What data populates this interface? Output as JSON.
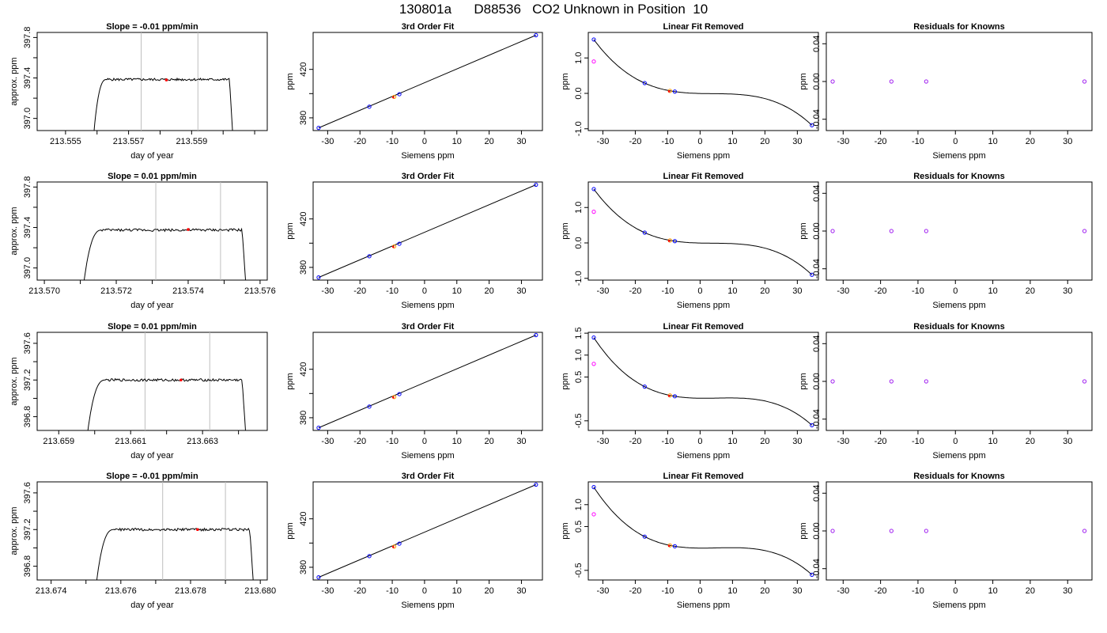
{
  "page": {
    "title": "130801a      D88536   CO2 Unknown in Position  10"
  },
  "colors": {
    "trace": "#000000",
    "marker_red": "#ff0000",
    "marker_orange": "#ff9900",
    "marker_blue": "#0000ff",
    "marker_purple": "#a020f0",
    "marker_magenta": "#ff00ff",
    "window_lines": "#bebebe"
  },
  "chart_data": [
    {
      "id": "r1-slope",
      "type": "line",
      "title": "Slope =  -0.01  ppm/min",
      "xlabel": "day of year",
      "ylabel": "approx. ppm",
      "xlim": [
        213.5541,
        213.5614
      ],
      "ylim": [
        396.88,
        397.85
      ],
      "xticks": [
        213.555,
        213.556,
        213.557,
        213.558,
        213.559,
        213.56,
        213.561
      ],
      "xtick_labels": [
        "213.555",
        "",
        "213.557",
        "",
        "213.559",
        "",
        ""
      ],
      "yticks": [
        397.0,
        397.2,
        397.4,
        397.6,
        397.8
      ],
      "ytick_labels": [
        "397.0",
        "",
        "397.4",
        "",
        "397.8"
      ],
      "vlines": [
        213.5574,
        213.5592
      ],
      "trace": {
        "x_start": 213.5559,
        "x_rise": 213.5563,
        "x_fall": 213.5602,
        "x_end": 213.5603,
        "y_start": 396.86,
        "y_mid": 397.23,
        "y_plateau": 397.385,
        "y_drop": 396.86,
        "noise": 0.012
      },
      "point": {
        "x": 213.5582,
        "y": 397.38
      }
    },
    {
      "id": "r1-fit",
      "type": "scatter",
      "title": "3rd Order Fit",
      "xlabel": "Siemens ppm",
      "ylabel": "ppm",
      "xlim": [
        -34.5,
        36.5
      ],
      "ylim": [
        369.5,
        450.5
      ],
      "xticks": [
        -30,
        -20,
        -10,
        0,
        10,
        20,
        30
      ],
      "yticks": [
        380,
        400,
        420
      ],
      "ytick_labels": [
        "380",
        "",
        "420"
      ],
      "fit_line": {
        "from": [
          -32.8,
          371.7
        ],
        "to": [
          34.5,
          448.2
        ]
      },
      "knowns": [
        [
          -32.8,
          371.7
        ],
        [
          -17.1,
          389.2
        ],
        [
          -7.8,
          399.5
        ],
        [
          34.5,
          448.2
        ]
      ],
      "unknown": [
        -9.4,
        397.3
      ]
    },
    {
      "id": "r1-lin",
      "type": "line",
      "title": "Linear Fit Removed",
      "xlabel": "Siemens ppm",
      "ylabel": "ppm",
      "xlim": [
        -34.5,
        36.5
      ],
      "ylim": [
        -1.05,
        1.72
      ],
      "xticks": [
        -30,
        -20,
        -10,
        0,
        10,
        20,
        30
      ],
      "yticks": [
        -1.0,
        0.0,
        1.0
      ],
      "ytick_labels": [
        "-1.0",
        "0.0",
        "1.0"
      ],
      "curve": {
        "a": 0.047,
        "b": 0.0135,
        "c": -5.5e-05
      },
      "knowns": [
        [
          -32.8,
          1.52
        ],
        [
          -17.1,
          0.29
        ],
        [
          -7.8,
          0.05
        ],
        [
          34.5,
          -0.9
        ]
      ],
      "hollow_magenta": [
        [
          -32.8,
          0.9
        ]
      ],
      "unknown": [
        -9.3,
        0.07
      ]
    },
    {
      "id": "r1-res",
      "type": "scatter",
      "title": "Residuals for Knowns",
      "xlabel": "Siemens ppm",
      "ylabel": "ppm",
      "xlim": [
        -34.5,
        36.5
      ],
      "ylim": [
        -0.052,
        0.052
      ],
      "xticks": [
        -30,
        -20,
        -10,
        0,
        10,
        20,
        30
      ],
      "yticks": [
        -0.04,
        0.0,
        0.04
      ],
      "ytick_labels": [
        "-0.04",
        "0.00",
        "0.04"
      ],
      "points": [
        [
          -32.8,
          0.0
        ],
        [
          -17.1,
          0.0
        ],
        [
          -7.8,
          0.0
        ],
        [
          34.5,
          0.0
        ]
      ]
    },
    {
      "id": "r2-slope",
      "type": "line",
      "title": "Slope =  0.01  ppm/min",
      "xlabel": "day of year",
      "ylabel": "approx. ppm",
      "xlim": [
        213.5698,
        213.5762
      ],
      "ylim": [
        396.88,
        397.85
      ],
      "xticks": [
        213.57,
        213.571,
        213.572,
        213.573,
        213.574,
        213.575,
        213.576
      ],
      "xtick_labels": [
        "213.570",
        "",
        "213.572",
        "",
        "213.574",
        "",
        "213.576"
      ],
      "yticks": [
        397.0,
        397.2,
        397.4,
        397.6,
        397.8
      ],
      "ytick_labels": [
        "397.0",
        "",
        "397.4",
        "",
        "397.8"
      ],
      "vlines": [
        213.5731,
        213.5749
      ],
      "trace": {
        "x_start": 213.5711,
        "x_rise": 213.5716,
        "x_fall": 213.5755,
        "x_end": 213.5756,
        "y_start": 396.86,
        "y_mid": 397.2,
        "y_plateau": 397.375,
        "y_drop": 396.86,
        "noise": 0.013
      },
      "point": {
        "x": 213.574,
        "y": 397.38
      }
    },
    {
      "id": "r2-fit",
      "type": "scatter",
      "title": "3rd Order Fit",
      "xlabel": "Siemens ppm",
      "ylabel": "ppm",
      "xlim": [
        -34.5,
        36.5
      ],
      "ylim": [
        369.5,
        450.5
      ],
      "xticks": [
        -30,
        -20,
        -10,
        0,
        10,
        20,
        30
      ],
      "yticks": [
        380,
        400,
        420
      ],
      "ytick_labels": [
        "380",
        "",
        "420"
      ],
      "fit_line": {
        "from": [
          -32.8,
          371.7
        ],
        "to": [
          34.5,
          448.2
        ]
      },
      "knowns": [
        [
          -32.8,
          371.7
        ],
        [
          -17.1,
          389.2
        ],
        [
          -7.8,
          399.5
        ],
        [
          34.5,
          448.2
        ]
      ],
      "unknown": [
        -9.4,
        397.3
      ]
    },
    {
      "id": "r2-lin",
      "type": "line",
      "title": "Linear Fit Removed",
      "xlabel": "Siemens ppm",
      "ylabel": "ppm",
      "xlim": [
        -34.5,
        36.5
      ],
      "ylim": [
        -1.05,
        1.72
      ],
      "xticks": [
        -30,
        -20,
        -10,
        0,
        10,
        20,
        30
      ],
      "yticks": [
        -1.0,
        0.0,
        1.0
      ],
      "ytick_labels": [
        "-1.0",
        "0.0",
        "1.0"
      ],
      "curve": {
        "a": 0.047,
        "b": 0.0135,
        "c": -5.5e-05
      },
      "knowns": [
        [
          -32.8,
          1.52
        ],
        [
          -17.1,
          0.29
        ],
        [
          -7.8,
          0.05
        ],
        [
          34.5,
          -0.9
        ]
      ],
      "hollow_magenta": [
        [
          -32.8,
          0.88
        ]
      ],
      "unknown": [
        -9.3,
        0.07
      ]
    },
    {
      "id": "r2-res",
      "type": "scatter",
      "title": "Residuals for Knowns",
      "xlabel": "Siemens ppm",
      "ylabel": "ppm",
      "xlim": [
        -34.5,
        36.5
      ],
      "ylim": [
        -0.052,
        0.052
      ],
      "xticks": [
        -30,
        -20,
        -10,
        0,
        10,
        20,
        30
      ],
      "yticks": [
        -0.04,
        0.0,
        0.04
      ],
      "ytick_labels": [
        "-0.04",
        "0.00",
        "0.04"
      ],
      "points": [
        [
          -32.8,
          0.0
        ],
        [
          -17.1,
          0.0
        ],
        [
          -7.8,
          0.0
        ],
        [
          34.5,
          0.0
        ]
      ]
    },
    {
      "id": "r3-slope",
      "type": "line",
      "title": "Slope =  0.01  ppm/min",
      "xlabel": "day of year",
      "ylabel": "approx. ppm",
      "xlim": [
        213.6584,
        213.6648
      ],
      "ylim": [
        396.65,
        397.72
      ],
      "xticks": [
        213.659,
        213.66,
        213.661,
        213.662,
        213.663,
        213.664
      ],
      "xtick_labels": [
        "213.659",
        "",
        "213.661",
        "",
        "213.663",
        ""
      ],
      "yticks": [
        396.8,
        397.0,
        397.2,
        397.4,
        397.6
      ],
      "ytick_labels": [
        "396.8",
        "",
        "397.2",
        "",
        "397.6"
      ],
      "vlines": [
        213.6614,
        213.6632
      ],
      "trace": {
        "x_start": 213.6598,
        "x_rise": 213.6603,
        "x_fall": 213.6641,
        "x_end": 213.6642,
        "y_start": 396.62,
        "y_mid": 397.0,
        "y_plateau": 397.2,
        "y_drop": 396.62,
        "noise": 0.014
      },
      "point": {
        "x": 213.6624,
        "y": 397.2
      }
    },
    {
      "id": "r3-fit",
      "type": "scatter",
      "title": "3rd Order Fit",
      "xlabel": "Siemens ppm",
      "ylabel": "ppm",
      "xlim": [
        -34.5,
        36.5
      ],
      "ylim": [
        369.5,
        450.5
      ],
      "xticks": [
        -30,
        -20,
        -10,
        0,
        10,
        20,
        30
      ],
      "yticks": [
        380,
        400,
        420
      ],
      "ytick_labels": [
        "380",
        "",
        "420"
      ],
      "fit_line": {
        "from": [
          -32.8,
          371.7
        ],
        "to": [
          34.5,
          448.2
        ]
      },
      "knowns": [
        [
          -32.8,
          371.7
        ],
        [
          -17.1,
          389.2
        ],
        [
          -7.8,
          399.5
        ],
        [
          34.5,
          448.2
        ]
      ],
      "unknown": [
        -9.4,
        397.1
      ]
    },
    {
      "id": "r3-lin",
      "type": "line",
      "title": "Linear Fit Removed",
      "xlabel": "Siemens ppm",
      "ylabel": "ppm",
      "xlim": [
        -34.5,
        36.5
      ],
      "ylim": [
        -0.72,
        1.52
      ],
      "xticks": [
        -30,
        -20,
        -10,
        0,
        10,
        20,
        30
      ],
      "yticks": [
        -0.5,
        0.5,
        1.0,
        1.5
      ],
      "ytick_labels": [
        "-0.5",
        "0.5",
        "1.0",
        "1.5"
      ],
      "curve": {
        "a": 0.047,
        "b": 0.0135,
        "c": -5.5e-05
      },
      "knowns": [
        [
          -32.8,
          1.4
        ],
        [
          -17.1,
          0.28
        ],
        [
          -7.8,
          0.06
        ],
        [
          34.5,
          -0.6
        ]
      ],
      "hollow_magenta": [
        [
          -32.8,
          0.8
        ]
      ],
      "unknown": [
        -9.3,
        0.08
      ]
    },
    {
      "id": "r3-res",
      "type": "scatter",
      "title": "Residuals for Knowns",
      "xlabel": "Siemens ppm",
      "ylabel": "ppm",
      "xlim": [
        -34.5,
        36.5
      ],
      "ylim": [
        -0.052,
        0.052
      ],
      "xticks": [
        -30,
        -20,
        -10,
        0,
        10,
        20,
        30
      ],
      "yticks": [
        -0.04,
        0.0,
        0.04
      ],
      "ytick_labels": [
        "-0.04",
        "0.00",
        "0.04"
      ],
      "points": [
        [
          -32.8,
          0.0
        ],
        [
          -17.1,
          0.0
        ],
        [
          -7.8,
          0.0
        ],
        [
          34.5,
          0.0
        ]
      ]
    },
    {
      "id": "r4-slope",
      "type": "line",
      "title": "Slope =  -0.01  ppm/min",
      "xlabel": "day of year",
      "ylabel": "approx. ppm",
      "xlim": [
        213.6736,
        213.6802
      ],
      "ylim": [
        396.65,
        397.72
      ],
      "xticks": [
        213.674,
        213.675,
        213.676,
        213.677,
        213.678,
        213.679,
        213.68
      ],
      "xtick_labels": [
        "213.674",
        "",
        "213.676",
        "",
        "213.678",
        "",
        "213.680"
      ],
      "yticks": [
        396.8,
        397.0,
        397.2,
        397.4,
        397.6
      ],
      "ytick_labels": [
        "396.8",
        "",
        "397.2",
        "",
        "397.6"
      ],
      "vlines": [
        213.6772,
        213.679
      ],
      "trace": {
        "x_start": 213.6753,
        "x_rise": 213.6758,
        "x_fall": 213.6797,
        "x_end": 213.6798,
        "y_start": 396.62,
        "y_mid": 397.0,
        "y_plateau": 397.2,
        "y_drop": 396.62,
        "noise": 0.014
      },
      "point": {
        "x": 213.6782,
        "y": 397.2
      }
    },
    {
      "id": "r4-fit",
      "type": "scatter",
      "title": "3rd Order Fit",
      "xlabel": "Siemens ppm",
      "ylabel": "ppm",
      "xlim": [
        -34.5,
        36.5
      ],
      "ylim": [
        369.5,
        450.5
      ],
      "xticks": [
        -30,
        -20,
        -10,
        0,
        10,
        20,
        30
      ],
      "yticks": [
        380,
        400,
        420
      ],
      "ytick_labels": [
        "380",
        "",
        "420"
      ],
      "fit_line": {
        "from": [
          -32.8,
          371.7
        ],
        "to": [
          34.5,
          448.2
        ]
      },
      "knowns": [
        [
          -32.8,
          371.7
        ],
        [
          -17.1,
          389.2
        ],
        [
          -7.8,
          399.5
        ],
        [
          34.5,
          448.2
        ]
      ],
      "unknown": [
        -9.4,
        397.1
      ]
    },
    {
      "id": "r4-lin",
      "type": "line",
      "title": "Linear Fit Removed",
      "xlabel": "Siemens ppm",
      "ylabel": "ppm",
      "xlim": [
        -34.5,
        36.5
      ],
      "ylim": [
        -0.72,
        1.52
      ],
      "xticks": [
        -30,
        -20,
        -10,
        0,
        10,
        20,
        30
      ],
      "yticks": [
        -0.5,
        0.5,
        1.0
      ],
      "ytick_labels": [
        "-0.5",
        "0.5",
        "1.0"
      ],
      "curve": {
        "a": 0.047,
        "b": 0.0135,
        "c": -5.5e-05
      },
      "knowns": [
        [
          -32.8,
          1.4
        ],
        [
          -17.1,
          0.27
        ],
        [
          -7.8,
          0.05
        ],
        [
          34.5,
          -0.6
        ]
      ],
      "hollow_magenta": [
        [
          -32.8,
          0.78
        ]
      ],
      "unknown": [
        -9.3,
        0.07
      ]
    },
    {
      "id": "r4-res",
      "type": "scatter",
      "title": "Residuals for Knowns",
      "xlabel": "Siemens ppm",
      "ylabel": "ppm",
      "xlim": [
        -34.5,
        36.5
      ],
      "ylim": [
        -0.052,
        0.052
      ],
      "xticks": [
        -30,
        -20,
        -10,
        0,
        10,
        20,
        30
      ],
      "yticks": [
        -0.04,
        0.0,
        0.04
      ],
      "ytick_labels": [
        "-0.04",
        "0.00",
        "0.04"
      ],
      "points": [
        [
          -32.8,
          0.0
        ],
        [
          -17.1,
          0.0
        ],
        [
          -7.8,
          0.0
        ],
        [
          34.5,
          0.0
        ]
      ]
    }
  ]
}
